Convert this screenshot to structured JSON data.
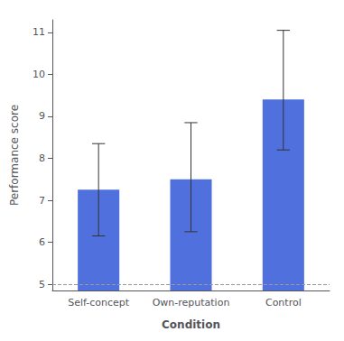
{
  "chart_data": {
    "type": "bar",
    "xlabel": "Condition",
    "ylabel": "Performance score",
    "categories": [
      "Self-concept",
      "Own-reputation",
      "Control"
    ],
    "values": [
      7.25,
      7.5,
      9.4
    ],
    "error_lower": [
      1.1,
      1.25,
      1.2
    ],
    "error_upper": [
      1.1,
      1.35,
      1.65
    ],
    "reference_line": {
      "y": 5.0,
      "line_style": "dashed"
    },
    "ylim": [
      4.85,
      11.3
    ],
    "yticks": [
      5,
      6,
      7,
      8,
      9,
      10,
      11
    ],
    "grid": false
  }
}
